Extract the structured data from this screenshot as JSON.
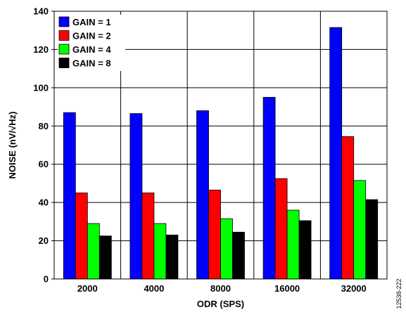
{
  "chart_data": {
    "type": "bar",
    "categories": [
      "2000",
      "4000",
      "8000",
      "16000",
      "32000"
    ],
    "series": [
      {
        "name": "GAIN = 1",
        "color": "#0000ff",
        "values": [
          87,
          86.5,
          88,
          95,
          131.5
        ]
      },
      {
        "name": "GAIN = 2",
        "color": "#ff0000",
        "values": [
          45,
          45,
          46.5,
          52.5,
          74.5
        ]
      },
      {
        "name": "GAIN = 4",
        "color": "#00ff00",
        "values": [
          29,
          29,
          31.5,
          36,
          51.5
        ]
      },
      {
        "name": "GAIN = 8",
        "color": "#000000",
        "values": [
          22.5,
          23,
          24.5,
          30.5,
          41.5
        ]
      }
    ],
    "xlabel": "ODR (SPS)",
    "ylabel": "NOISE (nV/√Hz)",
    "ylim": [
      0,
      140
    ],
    "yticks": [
      0,
      20,
      40,
      60,
      80,
      100,
      120,
      140
    ],
    "grid": true,
    "legend_position": "top-left",
    "figure_id": "12538-222"
  }
}
